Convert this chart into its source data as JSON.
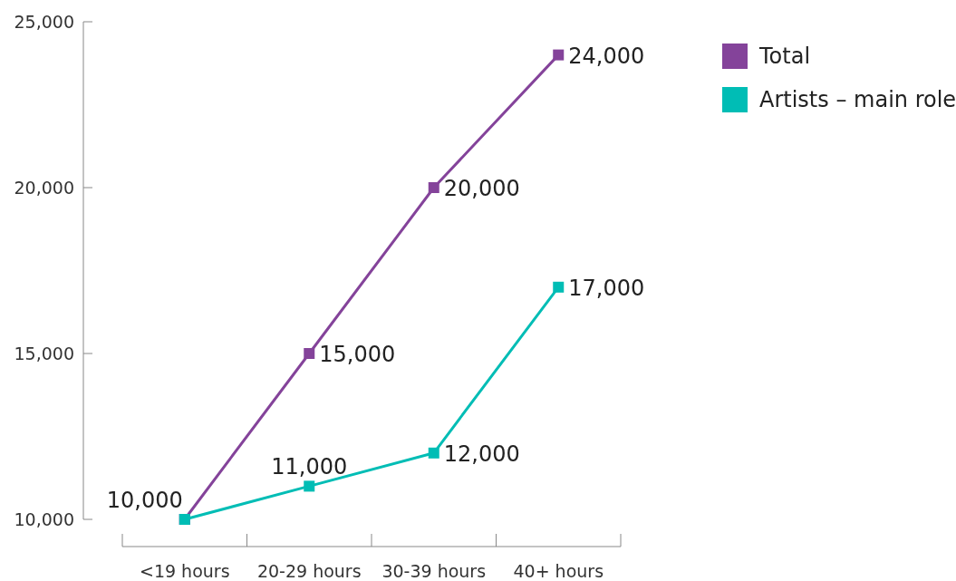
{
  "chart_data": {
    "type": "line",
    "categories": [
      "<19 hours",
      "20-29 hours",
      "30-39 hours",
      "40+ hours"
    ],
    "series": [
      {
        "name": "Total",
        "color": "#84439a",
        "values": [
          10000,
          15000,
          20000,
          24000
        ],
        "value_labels": [
          "10,000",
          "15,000",
          "20,000",
          "24,000"
        ]
      },
      {
        "name": "Artists – main role",
        "color": "#00bdb5",
        "values": [
          10000,
          11000,
          12000,
          17000
        ],
        "value_labels": [
          null,
          "11,000",
          "12,000",
          "17,000"
        ]
      }
    ],
    "ylim": [
      10000,
      25000
    ],
    "yticks": [
      {
        "value": 10000,
        "label": "10,000"
      },
      {
        "value": 15000,
        "label": "15,000"
      },
      {
        "value": 20000,
        "label": "20,000"
      },
      {
        "value": 25000,
        "label": "25,000"
      }
    ],
    "marker": "square",
    "legend": "top right",
    "grid": false
  }
}
